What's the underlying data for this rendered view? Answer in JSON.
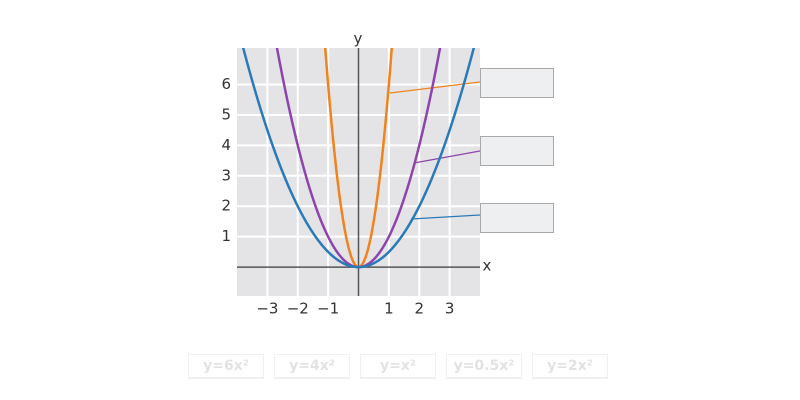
{
  "graph": {
    "x_label": "x",
    "y_label": "y",
    "xlim": [
      -4,
      4
    ],
    "ylim": [
      -0.95,
      7.2
    ],
    "xticks": [
      {
        "value": -3,
        "label": "−3"
      },
      {
        "value": -2,
        "label": "−2"
      },
      {
        "value": -1,
        "label": "−1"
      },
      1,
      2,
      3
    ],
    "yticks": [
      1,
      2,
      3,
      4,
      5,
      6
    ],
    "curves": [
      {
        "coefficient": 6,
        "color": "#f0831e"
      },
      {
        "coefficient": 1,
        "color": "#8e44ad"
      },
      {
        "coefficient": 0.5,
        "color": "#2a7ab8"
      }
    ]
  },
  "options": [
    "y=6x²",
    "y=4x²",
    "y=x²",
    "y=0.5x²",
    "y=2x²"
  ]
}
